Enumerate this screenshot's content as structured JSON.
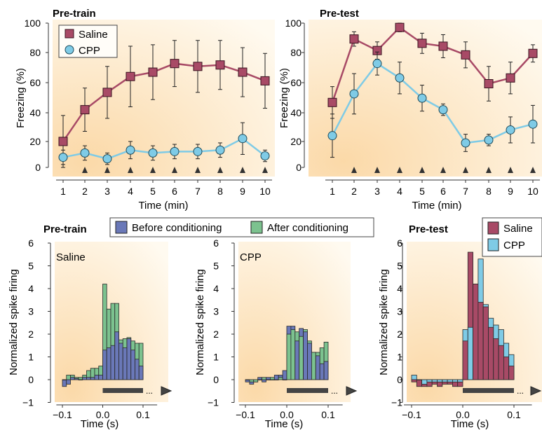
{
  "colors": {
    "saline": "#a84a66",
    "cpp": "#7fcbe6",
    "before": "#6a78b8",
    "after": "#7cc28f",
    "panel_light": "#fffaf0",
    "panel_warm": "#fbd9a8"
  },
  "chart_data": [
    {
      "id": "top-pretrain",
      "type": "line",
      "title": "Pre-train",
      "xlabel": "Time (min)",
      "ylabel": "Freezing (%)",
      "xlim": [
        0.5,
        10.5
      ],
      "ylim": [
        -8,
        100
      ],
      "x": [
        1,
        2,
        3,
        4,
        5,
        6,
        7,
        8,
        9,
        10
      ],
      "xticks": [
        "1",
        "2",
        "3",
        "4",
        "5",
        "6",
        "7",
        "8",
        "9",
        "10"
      ],
      "yticks": [
        "0",
        "20",
        "40",
        "60",
        "80",
        "100"
      ],
      "legend": [
        "Saline",
        "CPP"
      ],
      "legend_position": "top-left",
      "marker_row": [
        2,
        3,
        4,
        5,
        6,
        7,
        8,
        9,
        10
      ],
      "series": [
        {
          "name": "Saline",
          "marker": "square",
          "color": "#a84a66",
          "values": [
            18,
            40,
            52,
            63,
            66,
            72,
            70,
            71,
            66,
            60
          ],
          "errors": [
            18,
            15,
            18,
            21,
            19,
            16,
            18,
            17,
            17,
            19
          ]
        },
        {
          "name": "CPP",
          "marker": "circle",
          "color": "#7fcbe6",
          "values": [
            7,
            10,
            6,
            12,
            10,
            11,
            11,
            12,
            20,
            8
          ],
          "errors": [
            5,
            5,
            4,
            6,
            5,
            5,
            5,
            5,
            11,
            4
          ]
        }
      ]
    },
    {
      "id": "top-pretest",
      "type": "line",
      "title": "Pre-test",
      "xlabel": "Time (min)",
      "ylabel": "Freezing (%)",
      "xlim": [
        0.5,
        10.5
      ],
      "ylim": [
        -8,
        100
      ],
      "x": [
        1,
        2,
        3,
        4,
        5,
        6,
        7,
        8,
        9,
        10
      ],
      "xticks": [
        "1",
        "2",
        "3",
        "4",
        "5",
        "6",
        "7",
        "8",
        "9",
        "10"
      ],
      "yticks": [
        "0",
        "20",
        "40",
        "60",
        "80",
        "100"
      ],
      "marker_row": [
        2,
        3,
        4,
        5,
        6,
        7,
        8,
        9,
        10
      ],
      "series": [
        {
          "name": "Saline",
          "marker": "square",
          "color": "#a84a66",
          "values": [
            45,
            89,
            81,
            97,
            86,
            84,
            78,
            58,
            62,
            79
          ],
          "errors": [
            11,
            5,
            6,
            3,
            7,
            8,
            9,
            12,
            11,
            6
          ]
        },
        {
          "name": "CPP",
          "marker": "circle",
          "color": "#7fcbe6",
          "values": [
            22,
            51,
            72,
            62,
            48,
            40,
            17,
            19,
            26,
            30
          ],
          "errors": [
            15,
            14,
            8,
            11,
            9,
            4,
            6,
            4,
            9,
            13
          ]
        }
      ]
    },
    {
      "id": "bottom-saline",
      "type": "bar",
      "title": "Pre-train",
      "inset_label": "Saline",
      "xlabel": "Time (s)",
      "ylabel": "Normalized spike firing",
      "xlim": [
        -0.12,
        0.14
      ],
      "ylim": [
        -1,
        6
      ],
      "xticks": [
        "−0.1",
        "0.0",
        "0.1"
      ],
      "yticks": [
        "−1",
        "0",
        "1",
        "2",
        "3",
        "4",
        "5",
        "6"
      ],
      "legend": [
        "Before conditioning",
        "After conditioning"
      ],
      "legend_position": "top",
      "stimulus_bar": [
        0.0,
        0.1
      ],
      "ellipsis": "...",
      "bin_width": 0.01,
      "bin_start": [
        -0.1,
        -0.09,
        -0.08,
        -0.07,
        -0.06,
        -0.05,
        -0.04,
        -0.03,
        -0.02,
        -0.01,
        0.0,
        0.01,
        0.02,
        0.03,
        0.04,
        0.05,
        0.06,
        0.07,
        0.08,
        0.09
      ],
      "series": [
        {
          "name": "Before conditioning",
          "color": "#6a78b8",
          "values": [
            -0.3,
            -0.2,
            0.1,
            0.05,
            0.0,
            0.1,
            0.1,
            0.1,
            0.2,
            0.2,
            1.3,
            1.4,
            1.5,
            2.1,
            1.6,
            1.4,
            1.8,
            1.3,
            0.9,
            0.6
          ]
        },
        {
          "name": "After conditioning",
          "color": "#7cc28f",
          "values": [
            0.0,
            0.2,
            0.2,
            0.1,
            0.1,
            0.2,
            0.4,
            0.5,
            0.5,
            0.6,
            4.2,
            3.1,
            3.35,
            3.35,
            1.75,
            1.8,
            1.85,
            1.7,
            1.6,
            1.6
          ]
        }
      ]
    },
    {
      "id": "bottom-cpp",
      "type": "bar",
      "inset_label": "CPP",
      "xlabel": "Time (s)",
      "ylabel": "Normalized spike firing",
      "xlim": [
        -0.12,
        0.14
      ],
      "ylim": [
        -1,
        6
      ],
      "xticks": [
        "−0.1",
        "0.0",
        "0.1"
      ],
      "yticks": [
        "−1",
        "0",
        "1",
        "2",
        "3",
        "4",
        "5",
        "6"
      ],
      "stimulus_bar": [
        0.0,
        0.1
      ],
      "ellipsis": "...",
      "bin_width": 0.01,
      "bin_start": [
        -0.1,
        -0.09,
        -0.08,
        -0.07,
        -0.06,
        -0.05,
        -0.04,
        -0.03,
        -0.02,
        -0.01,
        0.0,
        0.01,
        0.02,
        0.03,
        0.04,
        0.05,
        0.06,
        0.07,
        0.08,
        0.09
      ],
      "series": [
        {
          "name": "Before conditioning",
          "color": "#6a78b8",
          "values": [
            -0.1,
            -0.2,
            -0.1,
            0.1,
            -0.1,
            0.1,
            0.0,
            0.2,
            0.2,
            0.4,
            2.35,
            2.35,
            1.7,
            2.25,
            2.1,
            1.6,
            1.2,
            1.05,
            0.7,
            0.8
          ]
        },
        {
          "name": "After conditioning",
          "color": "#7cc28f",
          "values": [
            0.0,
            -0.1,
            -0.1,
            0.0,
            0.1,
            0.0,
            0.1,
            0.0,
            0.1,
            0.0,
            2.0,
            2.2,
            2.1,
            1.9,
            2.2,
            1.7,
            1.2,
            1.2,
            1.4,
            1.65
          ]
        }
      ]
    },
    {
      "id": "bottom-pretest",
      "type": "bar",
      "title": "Pre-test",
      "xlabel": "Time (s)",
      "ylabel": "Normalized spike firing",
      "xlim": [
        -0.12,
        0.14
      ],
      "ylim": [
        -1,
        6
      ],
      "xticks": [
        "−0.1",
        "0.0",
        "0.1"
      ],
      "yticks": [
        "−1",
        "0",
        "1",
        "2",
        "3",
        "4",
        "5",
        "6"
      ],
      "legend": [
        "Saline",
        "CPP"
      ],
      "legend_position": "top-right",
      "stimulus_bar": [
        0.0,
        0.1
      ],
      "ellipsis": "...",
      "bin_width": 0.01,
      "bin_start": [
        -0.1,
        -0.09,
        -0.08,
        -0.07,
        -0.06,
        -0.05,
        -0.04,
        -0.03,
        -0.02,
        -0.01,
        0.0,
        0.01,
        0.02,
        0.03,
        0.04,
        0.05,
        0.06,
        0.07,
        0.08,
        0.09
      ],
      "series": [
        {
          "name": "CPP",
          "color": "#7fcbe6",
          "values": [
            0.2,
            0.0,
            -0.2,
            -0.1,
            -0.1,
            -0.1,
            -0.1,
            -0.1,
            -0.1,
            -0.1,
            2.2,
            2.3,
            4.2,
            5.3,
            3.3,
            2.7,
            2.4,
            2.2,
            1.6,
            1.1
          ]
        },
        {
          "name": "Saline",
          "color": "#a84a66",
          "values": [
            -0.1,
            -0.3,
            -0.3,
            -0.3,
            -0.2,
            -0.3,
            -0.2,
            -0.2,
            -0.3,
            -0.3,
            1.7,
            5.6,
            4.2,
            3.4,
            3.2,
            2.3,
            1.8,
            1.5,
            1.0,
            0.6
          ]
        }
      ]
    }
  ]
}
